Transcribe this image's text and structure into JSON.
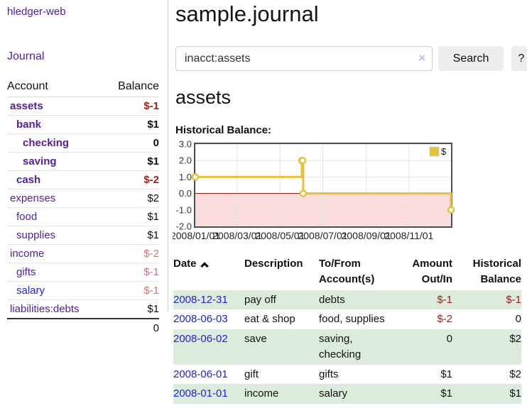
{
  "app": {
    "brand": "hledger-web"
  },
  "colors": {
    "link_purple": "#542099",
    "link_blue": "#2222cc",
    "negative_strong": "#9d1c1c",
    "negative_muted": "#bd7b7b",
    "row_green": "#dcecdc",
    "chart_gold": "#e5c13d",
    "chart_negative_fill": "#fbdcdc",
    "chart_zero_line": "#8c0606",
    "chart_grid": "#e3e3e3",
    "chart_border": "#4d4d4d"
  },
  "sidebar": {
    "nav": {
      "journal_label": "Journal"
    },
    "accounts": {
      "headers": {
        "account": "Account",
        "balance": "Balance"
      },
      "rows": [
        {
          "name": "assets",
          "balance": "$-1",
          "depth": 1,
          "bold": true,
          "tone": "neg",
          "link": "purple"
        },
        {
          "name": "bank",
          "balance": "$1",
          "depth": 2,
          "bold": true,
          "tone": "normal",
          "link": "purple"
        },
        {
          "name": "checking",
          "balance": "0",
          "depth": 3,
          "bold": true,
          "tone": "normal",
          "link": "purple"
        },
        {
          "name": "saving",
          "balance": "$1",
          "depth": 3,
          "bold": true,
          "tone": "normal",
          "link": "purple"
        },
        {
          "name": "cash",
          "balance": "$-2",
          "depth": 2,
          "bold": true,
          "tone": "neg",
          "link": "purple"
        },
        {
          "name": "expenses",
          "balance": "$2",
          "depth": 1,
          "bold": false,
          "tone": "normal",
          "link": "purple"
        },
        {
          "name": "food",
          "balance": "$1",
          "depth": 2,
          "bold": false,
          "tone": "normal",
          "link": "purple"
        },
        {
          "name": "supplies",
          "balance": "$1",
          "depth": 2,
          "bold": false,
          "tone": "normal",
          "link": "purple"
        },
        {
          "name": "income",
          "balance": "$-2",
          "depth": 1,
          "bold": false,
          "tone": "negmuted",
          "link": "purple"
        },
        {
          "name": "gifts",
          "balance": "$-1",
          "depth": 2,
          "bold": false,
          "tone": "negmuted",
          "link": "purple"
        },
        {
          "name": "salary",
          "balance": "$-1",
          "depth": 2,
          "bold": false,
          "tone": "negmuted",
          "link": "blue"
        },
        {
          "name": "liabilities:debts",
          "balance": "$1",
          "depth": 1,
          "bold": false,
          "tone": "normal",
          "link": "purple"
        }
      ],
      "total": "0"
    }
  },
  "main": {
    "title": "sample.journal",
    "search": {
      "value": "inacct:assets",
      "clear_icon": "×",
      "search_label": "Search",
      "help_label": "?"
    },
    "account_heading": "assets",
    "chart_label": "Historical Balance:"
  },
  "chart_data": {
    "type": "line",
    "step": true,
    "title": "Historical Balance:",
    "grid": true,
    "legend_position": "top-right",
    "legend": [
      {
        "label": "$",
        "color": "#e5c13d"
      }
    ],
    "y_ticks": [
      3.0,
      2.0,
      1.0,
      0.0,
      -1.0,
      -2.0
    ],
    "ylim": [
      -2.0,
      3.0
    ],
    "x_ticks": [
      "2008/01/01",
      "2008/03/01",
      "2008/05/01",
      "2008/07/01",
      "2008/09/01",
      "2008/11/01"
    ],
    "xlim_dates": [
      "2008-01-01",
      "2008-12-31"
    ],
    "series": [
      {
        "name": "$",
        "color": "#e5c13d",
        "points": [
          {
            "date": "2008-01-01",
            "value": 1
          },
          {
            "date": "2008-06-01",
            "value": 2
          },
          {
            "date": "2008-06-02",
            "value": 2
          },
          {
            "date": "2008-06-03",
            "value": 0
          },
          {
            "date": "2008-12-31",
            "value": -1
          }
        ]
      }
    ]
  },
  "register": {
    "headers": [
      {
        "label": "Date",
        "align": "left",
        "sorted": "asc"
      },
      {
        "label": "Description",
        "align": "left"
      },
      {
        "label": "To/From Account(s)",
        "align": "left"
      },
      {
        "label": "Amount Out/In",
        "align": "right"
      },
      {
        "label": "Historical Balance",
        "align": "right"
      }
    ],
    "rows": [
      {
        "date": "2008-12-31",
        "description": "pay off",
        "accounts": "debts",
        "amount": "$-1",
        "balance": "$-1"
      },
      {
        "date": "2008-06-03",
        "description": "eat & shop",
        "accounts": "food, supplies",
        "amount": "$-2",
        "balance": "0"
      },
      {
        "date": "2008-06-02",
        "description": "save",
        "accounts": "saving, checking",
        "amount": "0",
        "balance": "$2"
      },
      {
        "date": "2008-06-01",
        "description": "gift",
        "accounts": "gifts",
        "amount": "$1",
        "balance": "$2"
      },
      {
        "date": "2008-01-01",
        "description": "income",
        "accounts": "salary",
        "amount": "$1",
        "balance": "$1"
      }
    ]
  }
}
